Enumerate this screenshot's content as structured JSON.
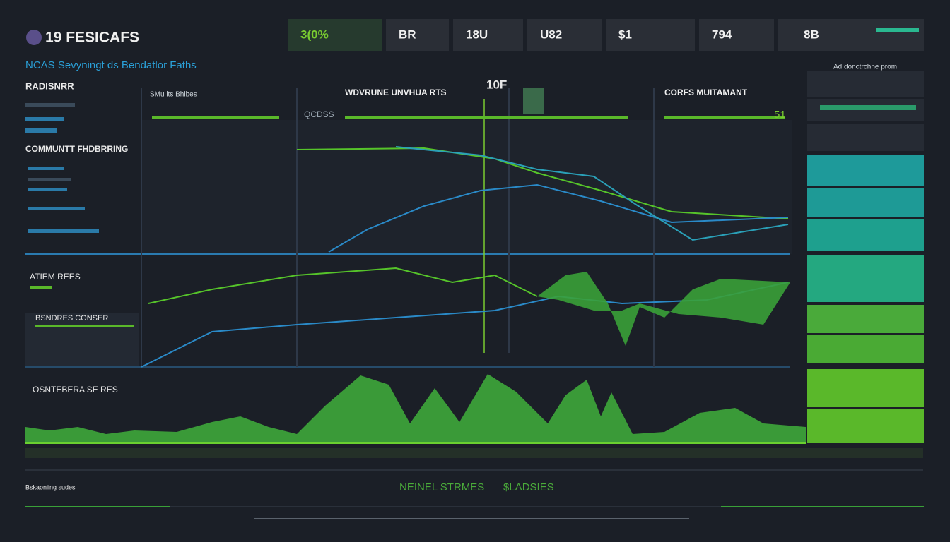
{
  "header": {
    "logo": "19 FESICAFS",
    "subtitle": "NCAS Sevyningt ds Bendatlor Faths"
  },
  "stats": [
    "3(0%",
    "BR",
    "18U",
    "U82",
    "$1",
    "794",
    "8B"
  ],
  "left_panel": {
    "title": "RADISNRR",
    "section": "COMMUNTT FHDBRRING"
  },
  "charts": {
    "left_label": "SMu lts Bhibes",
    "left_value": "QCDSS",
    "center_title": "WDVRUNE UNVHUA RTS",
    "center_value": "10F",
    "right_title": "CORFS MUITAMANT",
    "right_value": "51"
  },
  "lower": {
    "first": "ATIEM REES",
    "second": "BSNDRES CONSER",
    "third": "OSNTEBERA SE RES"
  },
  "right_panel": {
    "title": "Ad donctrchne prom"
  },
  "footer": {
    "left": "Bskaoniing sudes",
    "center": "NEINEL STRMES",
    "center_value": "$LADSIES"
  }
}
